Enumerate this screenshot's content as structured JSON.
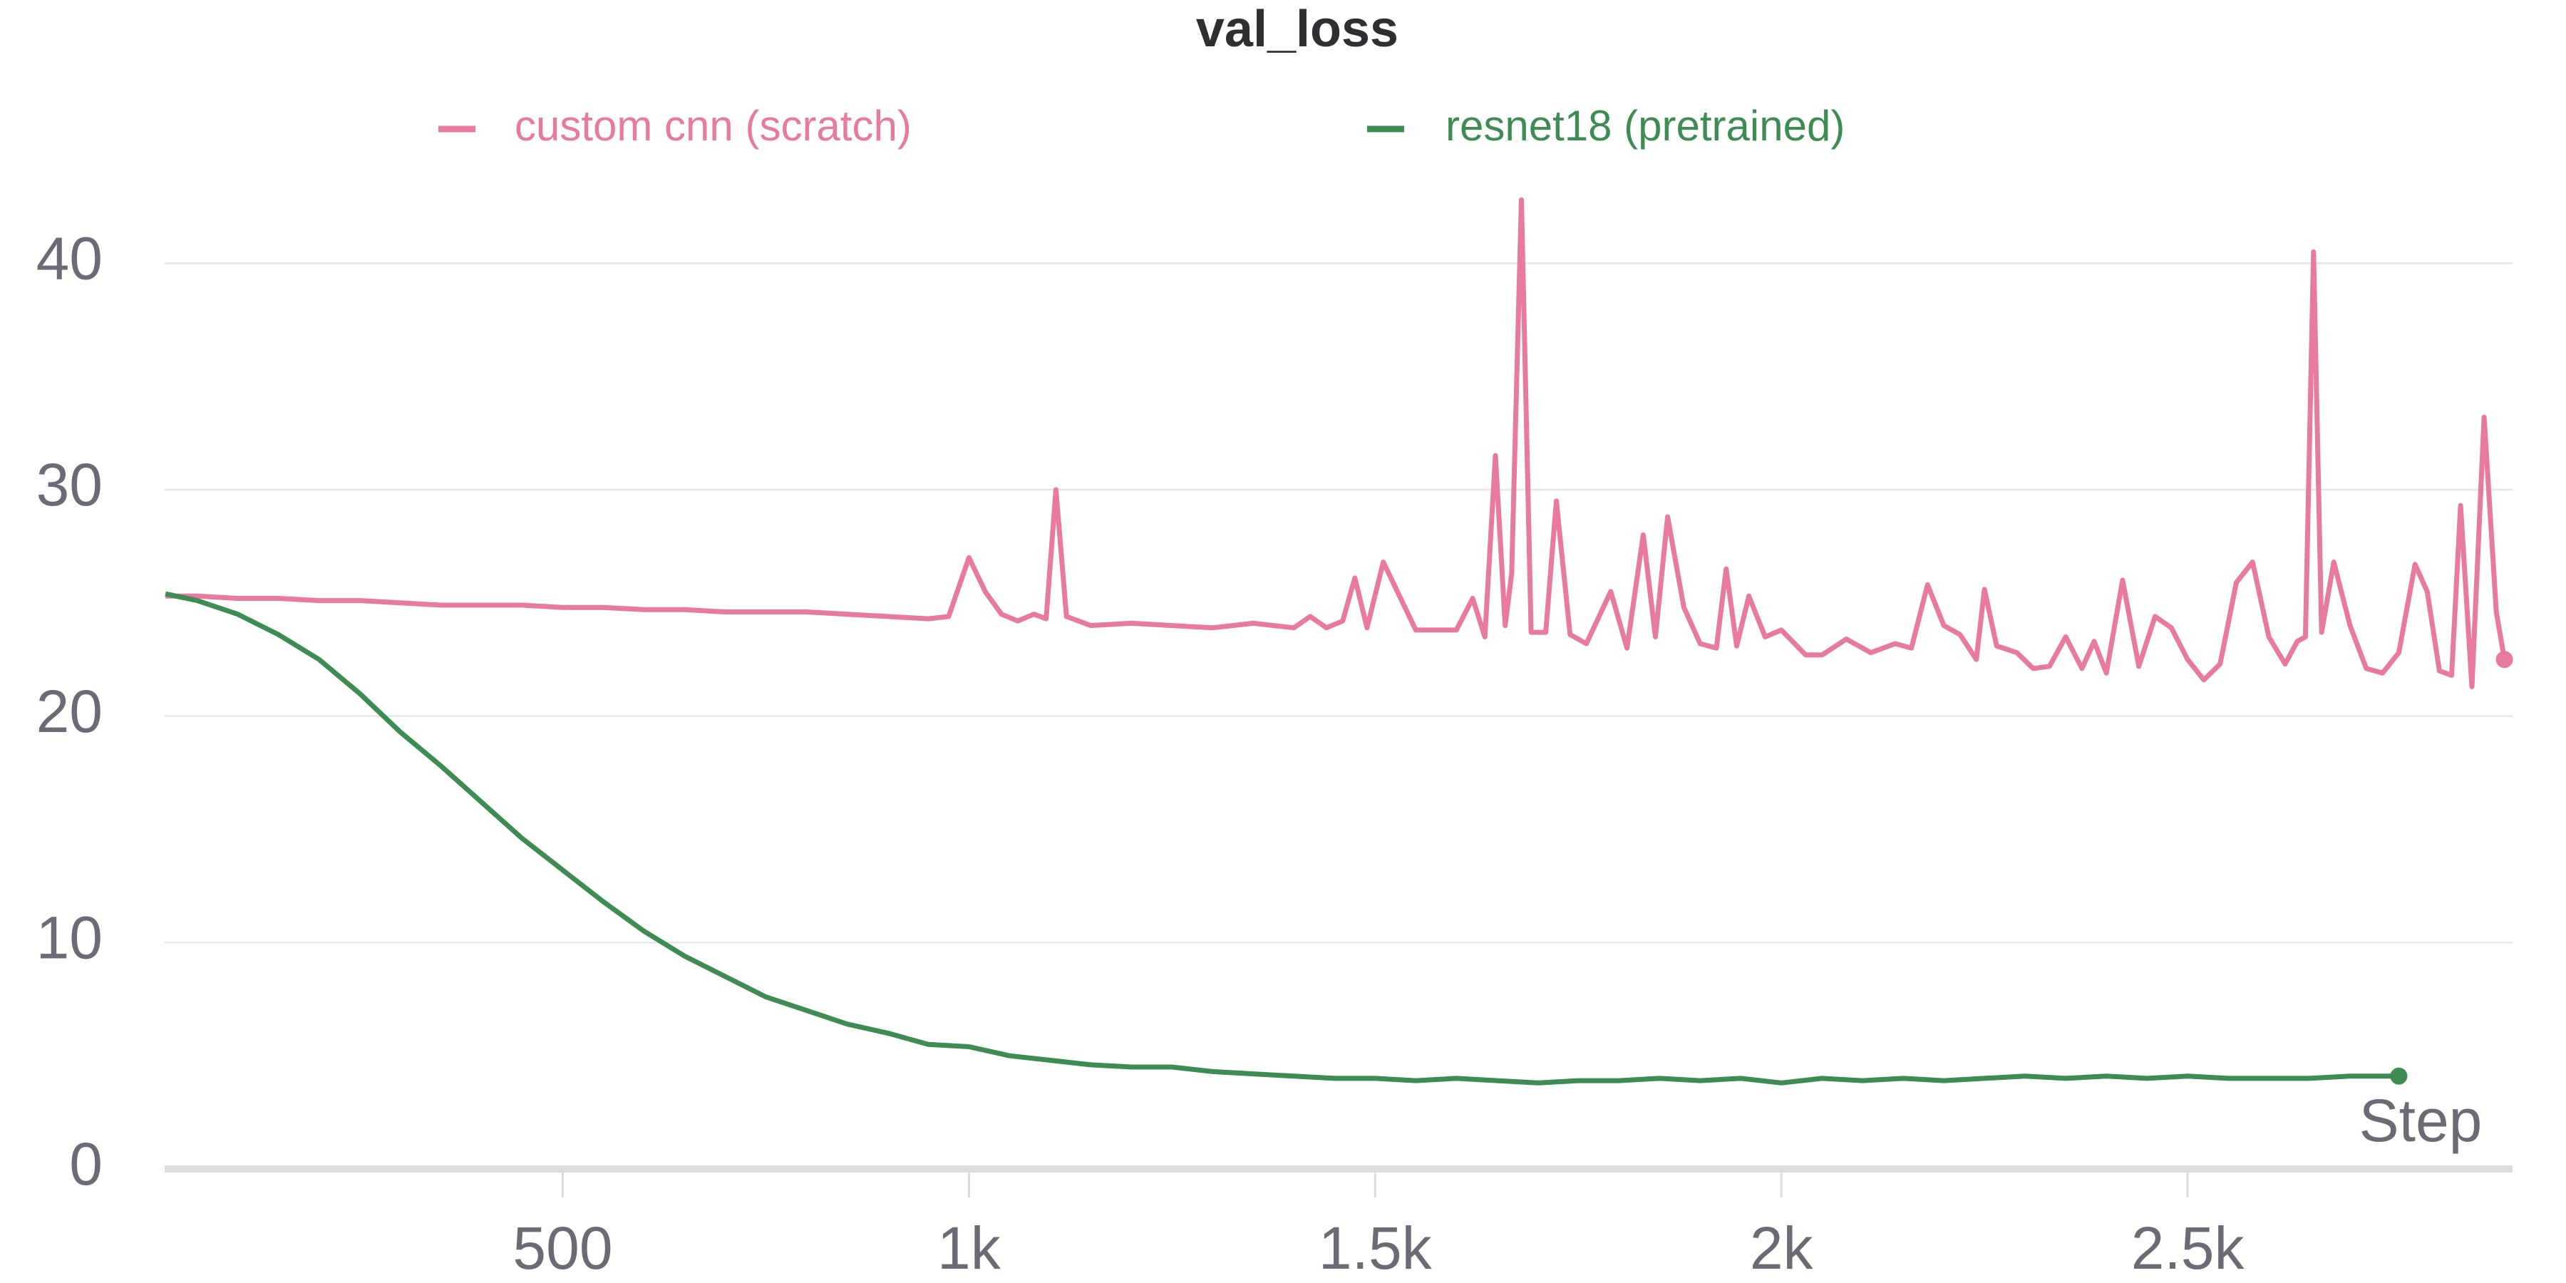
{
  "chart_data": {
    "type": "line",
    "title": "val_loss",
    "x_label": "Step",
    "xlim": [
      10,
      2900
    ],
    "ylim": [
      0,
      43
    ],
    "xticks": [
      500,
      {
        "value": 1000,
        "label": "1k"
      },
      {
        "value": 1500,
        "label": "1.5k"
      },
      {
        "value": 2000,
        "label": "2k"
      },
      {
        "value": 2500,
        "label": "2.5k"
      }
    ],
    "yticks": [
      0,
      10,
      20,
      30,
      40
    ],
    "grid": true,
    "legend": "top",
    "series": [
      {
        "name": "custom cnn (scratch)",
        "color": "#e8799f",
        "x": [
          11,
          50,
          100,
          150,
          200,
          250,
          300,
          350,
          400,
          450,
          500,
          550,
          600,
          650,
          700,
          750,
          800,
          850,
          900,
          950,
          975,
          1000,
          1020,
          1040,
          1060,
          1080,
          1095,
          1107,
          1120,
          1150,
          1200,
          1250,
          1300,
          1350,
          1400,
          1420,
          1440,
          1460,
          1475,
          1490,
          1510,
          1550,
          1600,
          1620,
          1635,
          1648,
          1660,
          1668,
          1680,
          1692,
          1710,
          1723,
          1740,
          1760,
          1790,
          1810,
          1830,
          1845,
          1860,
          1880,
          1900,
          1920,
          1932,
          1945,
          1960,
          1980,
          2000,
          2030,
          2050,
          2080,
          2110,
          2140,
          2160,
          2180,
          2200,
          2220,
          2240,
          2250,
          2265,
          2290,
          2310,
          2330,
          2350,
          2370,
          2385,
          2400,
          2420,
          2440,
          2460,
          2480,
          2500,
          2520,
          2540,
          2560,
          2580,
          2600,
          2620,
          2635,
          2645,
          2655,
          2665,
          2680,
          2700,
          2720,
          2740,
          2760,
          2780,
          2795,
          2810,
          2825,
          2836,
          2850,
          2865,
          2880,
          2890
        ],
        "values": [
          25.3,
          25.3,
          25.2,
          25.2,
          25.1,
          25.1,
          25.0,
          24.9,
          24.9,
          24.9,
          24.8,
          24.8,
          24.7,
          24.7,
          24.6,
          24.6,
          24.6,
          24.5,
          24.4,
          24.3,
          24.4,
          27.0,
          25.5,
          24.5,
          24.2,
          24.5,
          24.3,
          30.0,
          24.4,
          24.0,
          24.1,
          24.0,
          23.9,
          24.1,
          23.9,
          24.4,
          23.9,
          24.2,
          26.1,
          23.9,
          26.8,
          23.8,
          23.8,
          25.2,
          23.5,
          31.5,
          24.0,
          26.3,
          42.8,
          23.7,
          23.7,
          29.5,
          23.6,
          23.2,
          25.5,
          23.0,
          28.0,
          23.5,
          28.8,
          24.8,
          23.2,
          23.0,
          26.5,
          23.1,
          25.3,
          23.5,
          23.8,
          22.7,
          22.7,
          23.4,
          22.8,
          23.2,
          23.0,
          25.8,
          24.0,
          23.6,
          22.5,
          25.6,
          23.1,
          22.8,
          22.1,
          22.2,
          23.5,
          22.1,
          23.3,
          21.9,
          26.0,
          22.2,
          24.4,
          23.9,
          22.5,
          21.6,
          22.3,
          25.9,
          26.8,
          23.5,
          22.3,
          23.3,
          23.5,
          40.5,
          23.7,
          26.8,
          24.0,
          22.1,
          21.9,
          22.8,
          26.7,
          25.5,
          22.0,
          21.8,
          29.3,
          21.3,
          33.2,
          24.6,
          22.5
        ]
      },
      {
        "name": "resnet18 (pretrained)",
        "color": "#3e8c54",
        "x": [
          11,
          50,
          100,
          150,
          200,
          250,
          300,
          350,
          400,
          450,
          500,
          550,
          600,
          650,
          700,
          750,
          800,
          850,
          900,
          950,
          1000,
          1050,
          1100,
          1150,
          1200,
          1250,
          1300,
          1350,
          1400,
          1450,
          1500,
          1550,
          1600,
          1650,
          1700,
          1750,
          1800,
          1850,
          1900,
          1950,
          2000,
          2050,
          2100,
          2150,
          2200,
          2250,
          2300,
          2350,
          2400,
          2450,
          2500,
          2550,
          2600,
          2650,
          2700,
          2760
        ],
        "values": [
          25.4,
          25.1,
          24.5,
          23.6,
          22.5,
          21.0,
          19.3,
          17.8,
          16.2,
          14.6,
          13.2,
          11.8,
          10.5,
          9.4,
          8.5,
          7.6,
          7.0,
          6.4,
          6.0,
          5.5,
          5.4,
          5.0,
          4.8,
          4.6,
          4.5,
          4.5,
          4.3,
          4.2,
          4.1,
          4.0,
          4.0,
          3.9,
          4.0,
          3.9,
          3.8,
          3.9,
          3.9,
          4.0,
          3.9,
          4.0,
          3.8,
          4.0,
          3.9,
          4.0,
          3.9,
          4.0,
          4.1,
          4.0,
          4.1,
          4.0,
          4.1,
          4.0,
          4.0,
          4.0,
          4.1,
          4.1
        ]
      }
    ]
  }
}
